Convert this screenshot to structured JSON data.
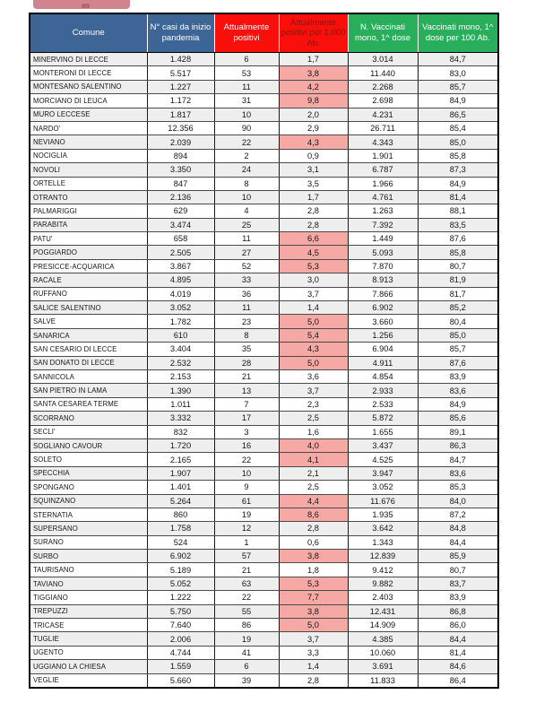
{
  "page": {
    "background": "#ffffff"
  },
  "banner": {
    "color": "#d2848e"
  },
  "colors": {
    "header_blue": "#3d6697",
    "header_red": "#fb0f0a",
    "header_red_text": "#801812",
    "header_green": "#29ae5c",
    "highlight_pink": "#f5a8a4",
    "zebra_gray": "#eeeeee",
    "banner_pink": "#d2848e"
  },
  "chart_data": {
    "type": "table",
    "columns": [
      {
        "label": "Comune",
        "bg": "#3d6697",
        "fg": "#ffffff"
      },
      {
        "label": "N° casi da inizio pandemia",
        "bg": "#3d6697",
        "fg": "#ffffff"
      },
      {
        "label": "Attualmente positivi",
        "bg": "#fb0f0a",
        "fg": "#ffffff"
      },
      {
        "label": "Attualmente positivi per 1.000 Ab.",
        "bg": "#fb0f0a",
        "fg": "#801812"
      },
      {
        "label": "N. Vaccinati mono, 1^ dose",
        "bg": "#29ae5c",
        "fg": "#ffffff"
      },
      {
        "label": "Vaccinati mono, 1^ dose per 100 Ab.",
        "bg": "#29ae5c",
        "fg": "#ffffff"
      }
    ],
    "rows": [
      {
        "comune": "MINERVINO DI LECCE",
        "casi": "1.428",
        "positivi": "6",
        "per1000": "1,7",
        "hl": false,
        "vaccinati": "3.014",
        "per100": "84,7"
      },
      {
        "comune": "MONTERONI DI LECCE",
        "casi": "5.517",
        "positivi": "53",
        "per1000": "3,8",
        "hl": true,
        "vaccinati": "11.440",
        "per100": "83,0"
      },
      {
        "comune": "MONTESANO SALENTINO",
        "casi": "1.227",
        "positivi": "11",
        "per1000": "4,2",
        "hl": true,
        "vaccinati": "2.268",
        "per100": "85,7"
      },
      {
        "comune": "MORCIANO DI LEUCA",
        "casi": "1.172",
        "positivi": "31",
        "per1000": "9,8",
        "hl": true,
        "vaccinati": "2.698",
        "per100": "84,9"
      },
      {
        "comune": "MURO LECCESE",
        "casi": "1.817",
        "positivi": "10",
        "per1000": "2,0",
        "hl": false,
        "vaccinati": "4.231",
        "per100": "86,5"
      },
      {
        "comune": "NARDO'",
        "casi": "12.356",
        "positivi": "90",
        "per1000": "2,9",
        "hl": false,
        "vaccinati": "26.711",
        "per100": "85,4"
      },
      {
        "comune": "NEVIANO",
        "casi": "2.039",
        "positivi": "22",
        "per1000": "4,3",
        "hl": true,
        "vaccinati": "4.343",
        "per100": "85,0"
      },
      {
        "comune": "NOCIGLIA",
        "casi": "894",
        "positivi": "2",
        "per1000": "0,9",
        "hl": false,
        "vaccinati": "1.901",
        "per100": "85,8"
      },
      {
        "comune": "NOVOLI",
        "casi": "3.350",
        "positivi": "24",
        "per1000": "3,1",
        "hl": false,
        "vaccinati": "6.787",
        "per100": "87,3"
      },
      {
        "comune": "ORTELLE",
        "casi": "847",
        "positivi": "8",
        "per1000": "3,5",
        "hl": false,
        "vaccinati": "1.966",
        "per100": "84,9"
      },
      {
        "comune": "OTRANTO",
        "casi": "2.136",
        "positivi": "10",
        "per1000": "1,7",
        "hl": false,
        "vaccinati": "4.761",
        "per100": "81,4"
      },
      {
        "comune": "PALMARIGGI",
        "casi": "629",
        "positivi": "4",
        "per1000": "2,8",
        "hl": false,
        "vaccinati": "1.263",
        "per100": "88,1"
      },
      {
        "comune": "PARABITA",
        "casi": "3.474",
        "positivi": "25",
        "per1000": "2,8",
        "hl": false,
        "vaccinati": "7.392",
        "per100": "83,5"
      },
      {
        "comune": "PATU'",
        "casi": "658",
        "positivi": "11",
        "per1000": "6,6",
        "hl": true,
        "vaccinati": "1.449",
        "per100": "87,6"
      },
      {
        "comune": "POGGIARDO",
        "casi": "2.505",
        "positivi": "27",
        "per1000": "4,5",
        "hl": true,
        "vaccinati": "5.093",
        "per100": "85,8"
      },
      {
        "comune": "PRESICCE-ACQUARICA",
        "casi": "3.867",
        "positivi": "52",
        "per1000": "5,3",
        "hl": true,
        "vaccinati": "7.870",
        "per100": "80,7"
      },
      {
        "comune": "RACALE",
        "casi": "4.895",
        "positivi": "33",
        "per1000": "3,0",
        "hl": false,
        "vaccinati": "8.913",
        "per100": "81,9"
      },
      {
        "comune": "RUFFANO",
        "casi": "4.019",
        "positivi": "36",
        "per1000": "3,7",
        "hl": false,
        "vaccinati": "7.866",
        "per100": "81,7"
      },
      {
        "comune": "SALICE SALENTINO",
        "casi": "3.052",
        "positivi": "11",
        "per1000": "1,4",
        "hl": false,
        "vaccinati": "6.902",
        "per100": "85,2"
      },
      {
        "comune": "SALVE",
        "casi": "1.782",
        "positivi": "23",
        "per1000": "5,0",
        "hl": true,
        "vaccinati": "3.660",
        "per100": "80,4"
      },
      {
        "comune": "SANARICA",
        "casi": "610",
        "positivi": "8",
        "per1000": "5,4",
        "hl": true,
        "vaccinati": "1.256",
        "per100": "85,0"
      },
      {
        "comune": "SAN CESARIO DI LECCE",
        "casi": "3.404",
        "positivi": "35",
        "per1000": "4,3",
        "hl": true,
        "vaccinati": "6.904",
        "per100": "85,7"
      },
      {
        "comune": "SAN DONATO DI LECCE",
        "casi": "2.532",
        "positivi": "28",
        "per1000": "5,0",
        "hl": true,
        "vaccinati": "4.911",
        "per100": "87,6"
      },
      {
        "comune": "SANNICOLA",
        "casi": "2.153",
        "positivi": "21",
        "per1000": "3,6",
        "hl": false,
        "vaccinati": "4.854",
        "per100": "83,9"
      },
      {
        "comune": "SAN PIETRO IN LAMA",
        "casi": "1.390",
        "positivi": "13",
        "per1000": "3,7",
        "hl": false,
        "vaccinati": "2.933",
        "per100": "83,6"
      },
      {
        "comune": "SANTA CESAREA TERME",
        "casi": "1.011",
        "positivi": "7",
        "per1000": "2,3",
        "hl": false,
        "vaccinati": "2.533",
        "per100": "84,9"
      },
      {
        "comune": "SCORRANO",
        "casi": "3.332",
        "positivi": "17",
        "per1000": "2,5",
        "hl": false,
        "vaccinati": "5.872",
        "per100": "85,6"
      },
      {
        "comune": "SECLI'",
        "casi": "832",
        "positivi": "3",
        "per1000": "1,6",
        "hl": false,
        "vaccinati": "1.655",
        "per100": "89,1"
      },
      {
        "comune": "SOGLIANO CAVOUR",
        "casi": "1.720",
        "positivi": "16",
        "per1000": "4,0",
        "hl": true,
        "vaccinati": "3.437",
        "per100": "86,3"
      },
      {
        "comune": "SOLETO",
        "casi": "2.165",
        "positivi": "22",
        "per1000": "4,1",
        "hl": true,
        "vaccinati": "4.525",
        "per100": "84,7"
      },
      {
        "comune": "SPECCHIA",
        "casi": "1.907",
        "positivi": "10",
        "per1000": "2,1",
        "hl": false,
        "vaccinati": "3.947",
        "per100": "83,6"
      },
      {
        "comune": "SPONGANO",
        "casi": "1.401",
        "positivi": "9",
        "per1000": "2,5",
        "hl": false,
        "vaccinati": "3.052",
        "per100": "85,3"
      },
      {
        "comune": "SQUINZANO",
        "casi": "5.264",
        "positivi": "61",
        "per1000": "4,4",
        "hl": true,
        "vaccinati": "11.676",
        "per100": "84,0"
      },
      {
        "comune": "STERNATIA",
        "casi": "860",
        "positivi": "19",
        "per1000": "8,6",
        "hl": true,
        "vaccinati": "1.935",
        "per100": "87,2"
      },
      {
        "comune": "SUPERSANO",
        "casi": "1.758",
        "positivi": "12",
        "per1000": "2,8",
        "hl": false,
        "vaccinati": "3.642",
        "per100": "84,8"
      },
      {
        "comune": "SURANO",
        "casi": "524",
        "positivi": "1",
        "per1000": "0,6",
        "hl": false,
        "vaccinati": "1.343",
        "per100": "84,4"
      },
      {
        "comune": "SURBO",
        "casi": "6.902",
        "positivi": "57",
        "per1000": "3,8",
        "hl": true,
        "vaccinati": "12.839",
        "per100": "85,9"
      },
      {
        "comune": "TAURISANO",
        "casi": "5.189",
        "positivi": "21",
        "per1000": "1,8",
        "hl": false,
        "vaccinati": "9.412",
        "per100": "80,7"
      },
      {
        "comune": "TAVIANO",
        "casi": "5.052",
        "positivi": "63",
        "per1000": "5,3",
        "hl": true,
        "vaccinati": "9.882",
        "per100": "83,7"
      },
      {
        "comune": "TIGGIANO",
        "casi": "1.222",
        "positivi": "22",
        "per1000": "7,7",
        "hl": true,
        "vaccinati": "2.403",
        "per100": "83,9"
      },
      {
        "comune": "TREPUZZI",
        "casi": "5.750",
        "positivi": "55",
        "per1000": "3,8",
        "hl": true,
        "vaccinati": "12.431",
        "per100": "86,8"
      },
      {
        "comune": "TRICASE",
        "casi": "7.640",
        "positivi": "86",
        "per1000": "5,0",
        "hl": true,
        "vaccinati": "14.909",
        "per100": "86,0"
      },
      {
        "comune": "TUGLIE",
        "casi": "2.006",
        "positivi": "19",
        "per1000": "3,7",
        "hl": false,
        "vaccinati": "4.385",
        "per100": "84,4"
      },
      {
        "comune": "UGENTO",
        "casi": "4.744",
        "positivi": "41",
        "per1000": "3,3",
        "hl": false,
        "vaccinati": "10.060",
        "per100": "81,4"
      },
      {
        "comune": "UGGIANO LA CHIESA",
        "casi": "1.559",
        "positivi": "6",
        "per1000": "1,4",
        "hl": false,
        "vaccinati": "3.691",
        "per100": "84,6"
      },
      {
        "comune": "VEGLIE",
        "casi": "5.660",
        "positivi": "39",
        "per1000": "2,8",
        "hl": false,
        "vaccinati": "11.833",
        "per100": "86,4"
      }
    ]
  }
}
